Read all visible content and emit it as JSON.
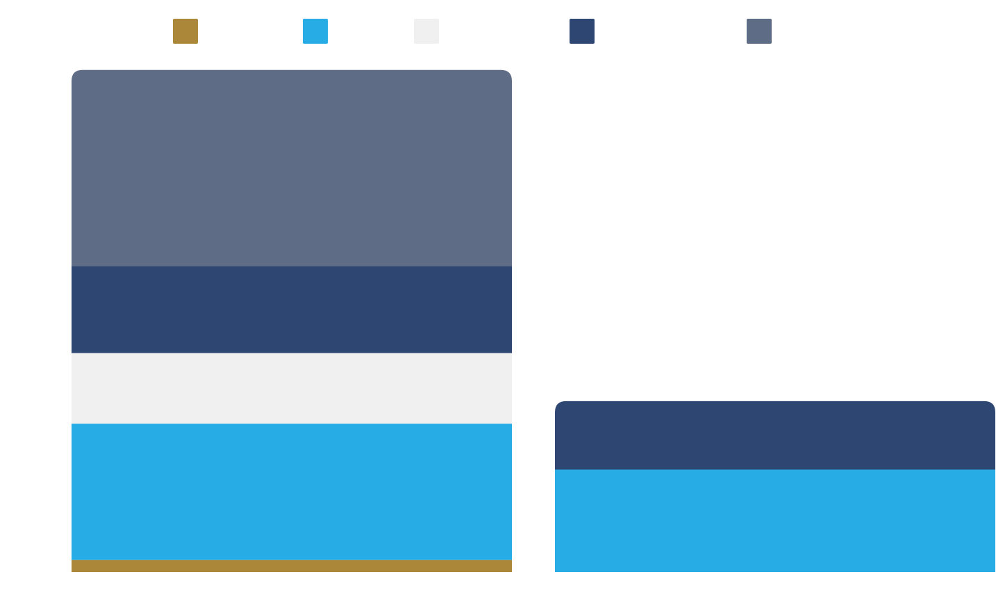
{
  "chart_data": {
    "type": "bar",
    "stacked": true,
    "categories": [
      "",
      ""
    ],
    "series": [
      {
        "color": "#AB873A",
        "values": [
          1.7,
          0
        ]
      },
      {
        "color": "#27ACE5",
        "values": [
          19.3,
          14.5
        ]
      },
      {
        "color": "#F0F0F0",
        "values": [
          10.0,
          0
        ]
      },
      {
        "color": "#2D4672",
        "values": [
          12.3,
          9.7
        ]
      },
      {
        "color": "#5F6C86",
        "values": [
          27.8,
          0
        ]
      }
    ],
    "ylim": [
      0,
      81
    ],
    "grid": false,
    "legend_position": "top",
    "title": "",
    "xlabel": "",
    "ylabel": ""
  }
}
